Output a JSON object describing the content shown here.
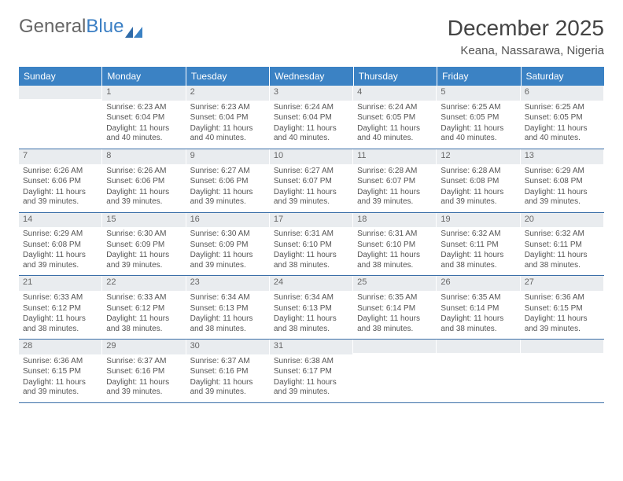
{
  "brand": {
    "part1": "General",
    "part2": "Blue"
  },
  "title": "December 2025",
  "location": "Keana, Nassarawa, Nigeria",
  "colors": {
    "header_bg": "#3b82c4",
    "header_text": "#ffffff",
    "daynum_bg": "#e9ecef",
    "week_border": "#3b6fa8",
    "body_text": "#555555"
  },
  "weekdays": [
    "Sunday",
    "Monday",
    "Tuesday",
    "Wednesday",
    "Thursday",
    "Friday",
    "Saturday"
  ],
  "weeks": [
    [
      {
        "n": "",
        "sunrise": "",
        "sunset": "",
        "daylight": ""
      },
      {
        "n": "1",
        "sunrise": "Sunrise: 6:23 AM",
        "sunset": "Sunset: 6:04 PM",
        "daylight": "Daylight: 11 hours and 40 minutes."
      },
      {
        "n": "2",
        "sunrise": "Sunrise: 6:23 AM",
        "sunset": "Sunset: 6:04 PM",
        "daylight": "Daylight: 11 hours and 40 minutes."
      },
      {
        "n": "3",
        "sunrise": "Sunrise: 6:24 AM",
        "sunset": "Sunset: 6:04 PM",
        "daylight": "Daylight: 11 hours and 40 minutes."
      },
      {
        "n": "4",
        "sunrise": "Sunrise: 6:24 AM",
        "sunset": "Sunset: 6:05 PM",
        "daylight": "Daylight: 11 hours and 40 minutes."
      },
      {
        "n": "5",
        "sunrise": "Sunrise: 6:25 AM",
        "sunset": "Sunset: 6:05 PM",
        "daylight": "Daylight: 11 hours and 40 minutes."
      },
      {
        "n": "6",
        "sunrise": "Sunrise: 6:25 AM",
        "sunset": "Sunset: 6:05 PM",
        "daylight": "Daylight: 11 hours and 40 minutes."
      }
    ],
    [
      {
        "n": "7",
        "sunrise": "Sunrise: 6:26 AM",
        "sunset": "Sunset: 6:06 PM",
        "daylight": "Daylight: 11 hours and 39 minutes."
      },
      {
        "n": "8",
        "sunrise": "Sunrise: 6:26 AM",
        "sunset": "Sunset: 6:06 PM",
        "daylight": "Daylight: 11 hours and 39 minutes."
      },
      {
        "n": "9",
        "sunrise": "Sunrise: 6:27 AM",
        "sunset": "Sunset: 6:06 PM",
        "daylight": "Daylight: 11 hours and 39 minutes."
      },
      {
        "n": "10",
        "sunrise": "Sunrise: 6:27 AM",
        "sunset": "Sunset: 6:07 PM",
        "daylight": "Daylight: 11 hours and 39 minutes."
      },
      {
        "n": "11",
        "sunrise": "Sunrise: 6:28 AM",
        "sunset": "Sunset: 6:07 PM",
        "daylight": "Daylight: 11 hours and 39 minutes."
      },
      {
        "n": "12",
        "sunrise": "Sunrise: 6:28 AM",
        "sunset": "Sunset: 6:08 PM",
        "daylight": "Daylight: 11 hours and 39 minutes."
      },
      {
        "n": "13",
        "sunrise": "Sunrise: 6:29 AM",
        "sunset": "Sunset: 6:08 PM",
        "daylight": "Daylight: 11 hours and 39 minutes."
      }
    ],
    [
      {
        "n": "14",
        "sunrise": "Sunrise: 6:29 AM",
        "sunset": "Sunset: 6:08 PM",
        "daylight": "Daylight: 11 hours and 39 minutes."
      },
      {
        "n": "15",
        "sunrise": "Sunrise: 6:30 AM",
        "sunset": "Sunset: 6:09 PM",
        "daylight": "Daylight: 11 hours and 39 minutes."
      },
      {
        "n": "16",
        "sunrise": "Sunrise: 6:30 AM",
        "sunset": "Sunset: 6:09 PM",
        "daylight": "Daylight: 11 hours and 39 minutes."
      },
      {
        "n": "17",
        "sunrise": "Sunrise: 6:31 AM",
        "sunset": "Sunset: 6:10 PM",
        "daylight": "Daylight: 11 hours and 38 minutes."
      },
      {
        "n": "18",
        "sunrise": "Sunrise: 6:31 AM",
        "sunset": "Sunset: 6:10 PM",
        "daylight": "Daylight: 11 hours and 38 minutes."
      },
      {
        "n": "19",
        "sunrise": "Sunrise: 6:32 AM",
        "sunset": "Sunset: 6:11 PM",
        "daylight": "Daylight: 11 hours and 38 minutes."
      },
      {
        "n": "20",
        "sunrise": "Sunrise: 6:32 AM",
        "sunset": "Sunset: 6:11 PM",
        "daylight": "Daylight: 11 hours and 38 minutes."
      }
    ],
    [
      {
        "n": "21",
        "sunrise": "Sunrise: 6:33 AM",
        "sunset": "Sunset: 6:12 PM",
        "daylight": "Daylight: 11 hours and 38 minutes."
      },
      {
        "n": "22",
        "sunrise": "Sunrise: 6:33 AM",
        "sunset": "Sunset: 6:12 PM",
        "daylight": "Daylight: 11 hours and 38 minutes."
      },
      {
        "n": "23",
        "sunrise": "Sunrise: 6:34 AM",
        "sunset": "Sunset: 6:13 PM",
        "daylight": "Daylight: 11 hours and 38 minutes."
      },
      {
        "n": "24",
        "sunrise": "Sunrise: 6:34 AM",
        "sunset": "Sunset: 6:13 PM",
        "daylight": "Daylight: 11 hours and 38 minutes."
      },
      {
        "n": "25",
        "sunrise": "Sunrise: 6:35 AM",
        "sunset": "Sunset: 6:14 PM",
        "daylight": "Daylight: 11 hours and 38 minutes."
      },
      {
        "n": "26",
        "sunrise": "Sunrise: 6:35 AM",
        "sunset": "Sunset: 6:14 PM",
        "daylight": "Daylight: 11 hours and 38 minutes."
      },
      {
        "n": "27",
        "sunrise": "Sunrise: 6:36 AM",
        "sunset": "Sunset: 6:15 PM",
        "daylight": "Daylight: 11 hours and 39 minutes."
      }
    ],
    [
      {
        "n": "28",
        "sunrise": "Sunrise: 6:36 AM",
        "sunset": "Sunset: 6:15 PM",
        "daylight": "Daylight: 11 hours and 39 minutes."
      },
      {
        "n": "29",
        "sunrise": "Sunrise: 6:37 AM",
        "sunset": "Sunset: 6:16 PM",
        "daylight": "Daylight: 11 hours and 39 minutes."
      },
      {
        "n": "30",
        "sunrise": "Sunrise: 6:37 AM",
        "sunset": "Sunset: 6:16 PM",
        "daylight": "Daylight: 11 hours and 39 minutes."
      },
      {
        "n": "31",
        "sunrise": "Sunrise: 6:38 AM",
        "sunset": "Sunset: 6:17 PM",
        "daylight": "Daylight: 11 hours and 39 minutes."
      },
      {
        "n": "",
        "sunrise": "",
        "sunset": "",
        "daylight": ""
      },
      {
        "n": "",
        "sunrise": "",
        "sunset": "",
        "daylight": ""
      },
      {
        "n": "",
        "sunrise": "",
        "sunset": "",
        "daylight": ""
      }
    ]
  ]
}
